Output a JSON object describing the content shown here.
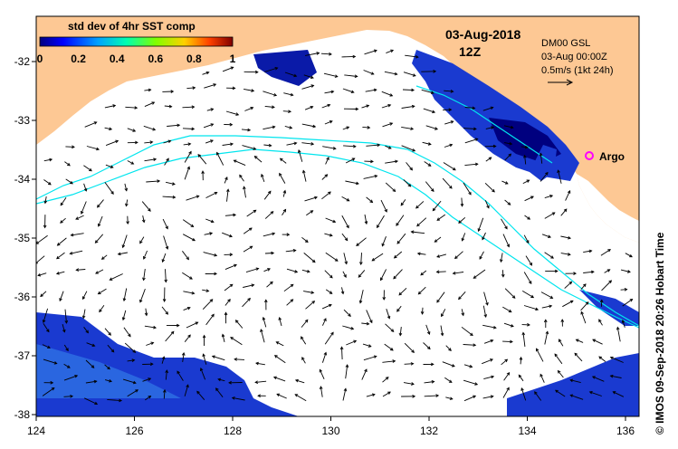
{
  "colorbar": {
    "title": "std dev of 4hr SST comp",
    "ticks": [
      "0",
      "0.2",
      "0.4",
      "0.6",
      "0.8",
      "1"
    ],
    "colors": [
      "#00007f",
      "#0000ff",
      "#00a0ff",
      "#00ffb0",
      "#7fff00",
      "#ffd000",
      "#ff4000",
      "#7f0000"
    ]
  },
  "header": {
    "date": "03-Aug-2018",
    "time": "12Z"
  },
  "legend": {
    "model": "DM00 GSL",
    "valid": "03-Aug 00:00Z",
    "scale": "0.5m/s (1kt 24h)"
  },
  "marker": {
    "label": "Argo",
    "color": "#ff00ff"
  },
  "axes": {
    "x_ticks": [
      "124",
      "126",
      "128",
      "130",
      "132",
      "134",
      "136"
    ],
    "y_ticks": [
      "-32",
      "-33",
      "-34",
      "-35",
      "-36",
      "-37",
      "-38"
    ]
  },
  "credit": "© IMOS 09-Sep-2018 20:26 Hobart Time",
  "colors": {
    "land": "#fdc894",
    "ocean": "#ffffff",
    "track": "#00e5ee",
    "arrow": "#000000"
  }
}
